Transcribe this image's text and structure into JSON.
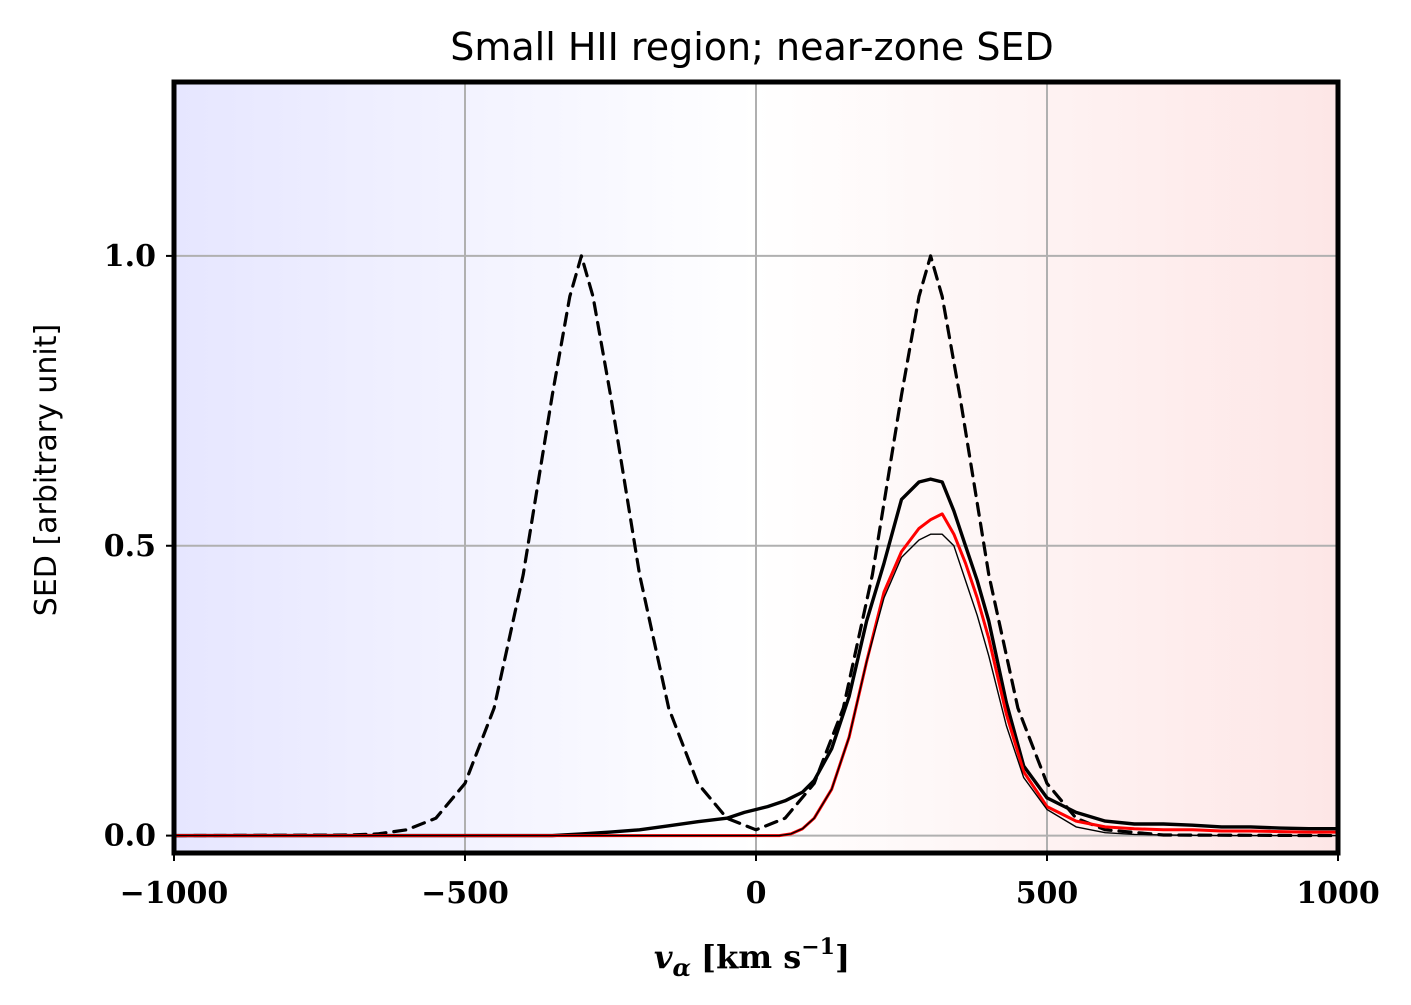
{
  "chart_data": {
    "type": "line",
    "title": "Small HII region; near-zone SED",
    "xlabel": "v_α [km s⁻¹]",
    "xlabel_var": "v",
    "xlabel_sub": "α",
    "xlabel_units": "[km s",
    "xlabel_sup": "−1",
    "xlabel_close": "]",
    "ylabel": "SED [arbitrary unit]",
    "xlim": [
      -1000,
      1000
    ],
    "ylim": [
      -0.03,
      1.3
    ],
    "grid": true,
    "legend": "none",
    "background_gradient": {
      "left": "#e6e6ff",
      "middle": "#ffffff",
      "right": "#fde6e6"
    },
    "xticks": [
      -1000,
      -500,
      0,
      500,
      1000
    ],
    "xtick_labels": [
      "−1000",
      "−500",
      "0",
      "500",
      "1000"
    ],
    "yticks": [
      0.0,
      0.5,
      1.0
    ],
    "ytick_labels": [
      "0.0",
      "0.5",
      "1.0"
    ],
    "series": [
      {
        "style": "dashed-black",
        "color": "#000000",
        "x": [
          -1000,
          -700,
          -650,
          -600,
          -550,
          -500,
          -450,
          -400,
          -350,
          -320,
          -300,
          -280,
          -250,
          -200,
          -150,
          -100,
          -50,
          0,
          50,
          100,
          150,
          200,
          250,
          280,
          300,
          320,
          350,
          400,
          450,
          500,
          550,
          600,
          700,
          1000
        ],
        "y": [
          0.0,
          0.001,
          0.003,
          0.01,
          0.03,
          0.09,
          0.22,
          0.45,
          0.76,
          0.93,
          1.0,
          0.93,
          0.76,
          0.45,
          0.22,
          0.09,
          0.03,
          0.01,
          0.03,
          0.09,
          0.22,
          0.45,
          0.76,
          0.93,
          1.0,
          0.93,
          0.76,
          0.45,
          0.22,
          0.09,
          0.03,
          0.01,
          0.001,
          0.0
        ]
      },
      {
        "style": "solid-black-thick",
        "color": "#000000",
        "x": [
          -1000,
          -350,
          -300,
          -250,
          -200,
          -150,
          -100,
          -50,
          -20,
          0,
          20,
          50,
          80,
          100,
          130,
          160,
          190,
          220,
          250,
          280,
          300,
          320,
          340,
          360,
          380,
          400,
          430,
          460,
          500,
          550,
          600,
          650,
          700,
          750,
          800,
          850,
          900,
          950,
          1000
        ],
        "y": [
          0.0,
          0.0,
          0.003,
          0.006,
          0.01,
          0.017,
          0.024,
          0.03,
          0.04,
          0.045,
          0.05,
          0.06,
          0.075,
          0.095,
          0.15,
          0.24,
          0.37,
          0.47,
          0.58,
          0.61,
          0.615,
          0.61,
          0.56,
          0.5,
          0.44,
          0.37,
          0.23,
          0.12,
          0.065,
          0.04,
          0.025,
          0.02,
          0.02,
          0.018,
          0.015,
          0.015,
          0.013,
          0.012,
          0.012
        ]
      },
      {
        "style": "solid-red",
        "color": "#ff0000",
        "x": [
          -1000,
          40,
          60,
          80,
          100,
          130,
          160,
          190,
          220,
          250,
          280,
          300,
          320,
          340,
          360,
          380,
          400,
          430,
          460,
          500,
          550,
          600,
          650,
          700,
          750,
          800,
          850,
          900,
          950,
          1000
        ],
        "y": [
          0.0,
          0.0,
          0.003,
          0.012,
          0.03,
          0.08,
          0.17,
          0.3,
          0.42,
          0.49,
          0.53,
          0.545,
          0.555,
          0.52,
          0.47,
          0.41,
          0.34,
          0.21,
          0.11,
          0.05,
          0.025,
          0.015,
          0.012,
          0.01,
          0.01,
          0.008,
          0.008,
          0.007,
          0.006,
          0.006
        ]
      },
      {
        "style": "solid-black-thin",
        "color": "#000000",
        "x": [
          -1000,
          40,
          60,
          80,
          100,
          130,
          160,
          190,
          220,
          250,
          280,
          300,
          320,
          340,
          360,
          380,
          400,
          430,
          460,
          500,
          550,
          600,
          650,
          700,
          800,
          1000
        ],
        "y": [
          0.0,
          0.0,
          0.003,
          0.012,
          0.03,
          0.08,
          0.17,
          0.3,
          0.41,
          0.48,
          0.51,
          0.52,
          0.52,
          0.5,
          0.44,
          0.38,
          0.31,
          0.19,
          0.1,
          0.045,
          0.015,
          0.005,
          0.002,
          0.001,
          0.0,
          0.0
        ]
      }
    ]
  }
}
